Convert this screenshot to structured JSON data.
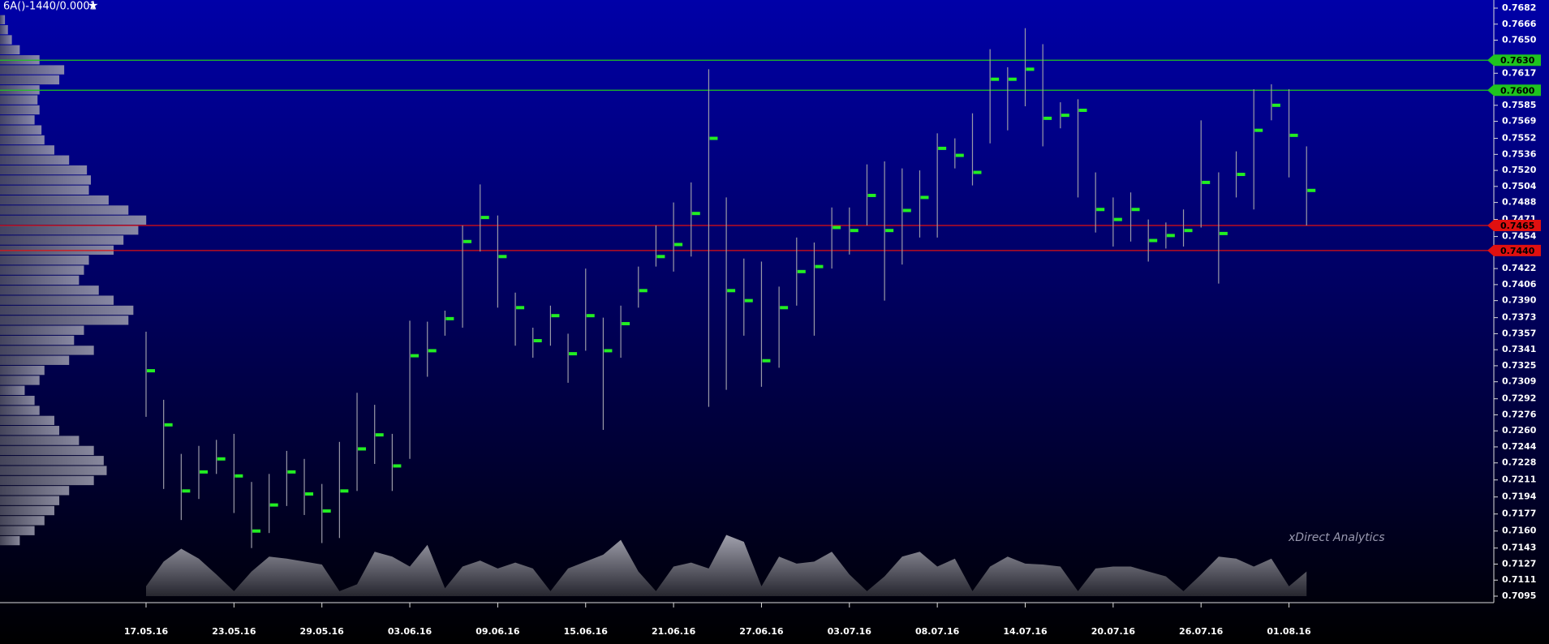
{
  "chart_data": {
    "type": "range",
    "title": "6A()-1440/0.0001",
    "watermark": "xDirect Analytics",
    "categories": [
      "17.05.16",
      null,
      null,
      null,
      null,
      "23.05.16",
      null,
      null,
      null,
      null,
      "29.05.16",
      null,
      null,
      null,
      null,
      "03.06.16",
      null,
      null,
      null,
      null,
      "09.06.16",
      null,
      null,
      null,
      null,
      "15.06.16",
      null,
      null,
      null,
      null,
      "21.06.16",
      null,
      null,
      null,
      null,
      "27.06.16",
      null,
      null,
      null,
      null,
      "03.07.16",
      null,
      null,
      null,
      null,
      "08.07.16",
      null,
      null,
      null,
      null,
      "14.07.16",
      null,
      null,
      null,
      null,
      "20.07.16",
      null,
      null,
      null,
      null,
      "26.07.16",
      null,
      null,
      null,
      null,
      "01.08.16",
      null
    ],
    "high": [
      0.7359,
      0.7291,
      0.7237,
      0.7245,
      0.7251,
      0.7257,
      0.7209,
      0.7217,
      0.724,
      0.7232,
      0.7207,
      0.7249,
      0.7298,
      0.7286,
      0.7257,
      0.737,
      0.7369,
      0.738,
      0.7465,
      0.7506,
      0.7475,
      0.7398,
      0.7363,
      0.7385,
      0.7357,
      0.7422,
      0.7373,
      0.7385,
      0.7424,
      0.7465,
      0.7488,
      0.7508,
      0.7621,
      0.7493,
      0.7432,
      0.7429,
      0.7404,
      0.7453,
      0.7448,
      0.7483,
      0.7483,
      0.7526,
      0.7529,
      0.7522,
      0.752,
      0.7557,
      0.7552,
      0.7577,
      0.7641,
      0.7623,
      0.7662,
      0.7646,
      0.7588,
      0.7591,
      0.7518,
      0.7493,
      0.7498,
      0.7471,
      0.7468,
      0.7481,
      0.757,
      0.7518,
      0.7539,
      0.7601,
      0.7606,
      0.7601,
      0.7544
    ],
    "low": [
      0.7274,
      0.7202,
      0.7171,
      0.7192,
      0.7217,
      0.7178,
      0.7143,
      0.7158,
      0.7185,
      0.7176,
      0.7148,
      0.7153,
      0.72,
      0.7227,
      0.72,
      0.7232,
      0.7314,
      0.7355,
      0.7363,
      0.7439,
      0.7383,
      0.7345,
      0.7333,
      0.7345,
      0.7308,
      0.734,
      0.7261,
      0.7333,
      0.7383,
      0.7424,
      0.7419,
      0.7434,
      0.7284,
      0.7301,
      0.7355,
      0.7304,
      0.7323,
      0.7385,
      0.7355,
      0.7422,
      0.7436,
      0.7465,
      0.739,
      0.7426,
      0.7453,
      0.7453,
      0.7522,
      0.7505,
      0.7547,
      0.756,
      0.7584,
      0.7544,
      0.7562,
      0.7493,
      0.7458,
      0.7444,
      0.7449,
      0.7429,
      0.7442,
      0.7444,
      0.7463,
      0.7407,
      0.7493,
      0.7481,
      0.757,
      0.7513,
      0.7465
    ],
    "poc": [
      0.732,
      0.7266,
      0.72,
      0.7219,
      0.7232,
      0.7215,
      0.716,
      0.7186,
      0.7219,
      0.7197,
      0.718,
      0.72,
      0.7242,
      0.7256,
      0.7225,
      0.7335,
      0.734,
      0.7372,
      0.7449,
      0.7473,
      0.7434,
      0.7383,
      0.735,
      0.7375,
      0.7337,
      0.7375,
      0.734,
      0.7367,
      0.74,
      0.7434,
      0.7446,
      0.7477,
      0.7552,
      0.74,
      0.739,
      0.733,
      0.7383,
      0.7419,
      0.7424,
      0.7463,
      0.746,
      0.7495,
      0.746,
      0.748,
      0.7493,
      0.7542,
      0.7535,
      0.7518,
      0.7611,
      0.7611,
      0.7621,
      0.7572,
      0.7575,
      0.758,
      0.7481,
      0.7471,
      0.7481,
      0.745,
      0.7455,
      0.746,
      0.7508,
      0.7457,
      0.7516,
      0.756,
      0.7585,
      0.7555,
      0.75
    ],
    "volume": [
      10,
      35,
      48,
      38,
      22,
      5,
      25,
      40,
      38,
      35,
      32,
      5,
      12,
      45,
      40,
      30,
      52,
      8,
      30,
      36,
      28,
      34,
      28,
      5,
      28,
      35,
      42,
      57,
      25,
      5,
      30,
      34,
      28,
      62,
      55,
      10,
      40,
      33,
      35,
      45,
      22,
      5,
      20,
      40,
      45,
      30,
      38,
      5,
      30,
      40,
      33,
      32,
      30,
      5,
      28,
      30,
      30,
      25,
      20,
      5,
      22,
      40,
      38,
      30,
      38,
      10,
      25
    ],
    "profile": {
      "levels": [
        0.767,
        0.766,
        0.765,
        0.764,
        0.763,
        0.762,
        0.761,
        0.76,
        0.759,
        0.758,
        0.757,
        0.756,
        0.755,
        0.754,
        0.753,
        0.752,
        0.751,
        0.75,
        0.749,
        0.748,
        0.747,
        0.746,
        0.745,
        0.744,
        0.743,
        0.742,
        0.741,
        0.74,
        0.739,
        0.738,
        0.737,
        0.736,
        0.735,
        0.734,
        0.733,
        0.732,
        0.731,
        0.73,
        0.729,
        0.728,
        0.727,
        0.726,
        0.725,
        0.724,
        0.723,
        0.722,
        0.721,
        0.72,
        0.719,
        0.718,
        0.717,
        0.716,
        0.715
      ],
      "values": [
        5,
        8,
        12,
        20,
        40,
        65,
        60,
        40,
        38,
        40,
        35,
        42,
        45,
        55,
        70,
        88,
        92,
        90,
        110,
        130,
        148,
        140,
        125,
        115,
        90,
        85,
        80,
        100,
        115,
        135,
        130,
        85,
        75,
        95,
        70,
        45,
        40,
        25,
        35,
        40,
        55,
        60,
        80,
        95,
        105,
        108,
        95,
        70,
        60,
        55,
        45,
        35,
        20
      ]
    },
    "levels": [
      {
        "value": 0.763,
        "label": "0.7630",
        "color": "#1fc41f"
      },
      {
        "value": 0.76,
        "label": "0.7600",
        "color": "#1fc41f"
      },
      {
        "value": 0.7465,
        "label": "0.7465",
        "color": "#e01010"
      },
      {
        "value": 0.744,
        "label": "0.7440",
        "color": "#e01010"
      }
    ],
    "ylim": [
      0.7095,
      0.7682
    ],
    "yticks": [
      0.7682,
      0.7666,
      {
        "value": 0.765,
        "label": "0.7650"
      },
      0.7617,
      0.7585,
      0.7569,
      0.7552,
      0.7536,
      {
        "value": 0.752,
        "label": "0.7520"
      },
      0.7504,
      0.7488,
      0.7471,
      0.7454,
      0.7422,
      0.7406,
      {
        "value": 0.739,
        "label": "0.7390"
      },
      0.7373,
      0.7357,
      0.7341,
      0.7325,
      0.7309,
      0.7292,
      0.7276,
      {
        "value": 0.726,
        "label": "0.7260"
      },
      0.7244,
      0.7228,
      0.7211,
      0.7194,
      0.7177,
      {
        "value": 0.716,
        "label": "0.7160"
      },
      0.7143,
      0.7127,
      0.7111,
      0.7095
    ],
    "bar_color": "#9a9aa8",
    "poc_color": "#22ee22"
  }
}
